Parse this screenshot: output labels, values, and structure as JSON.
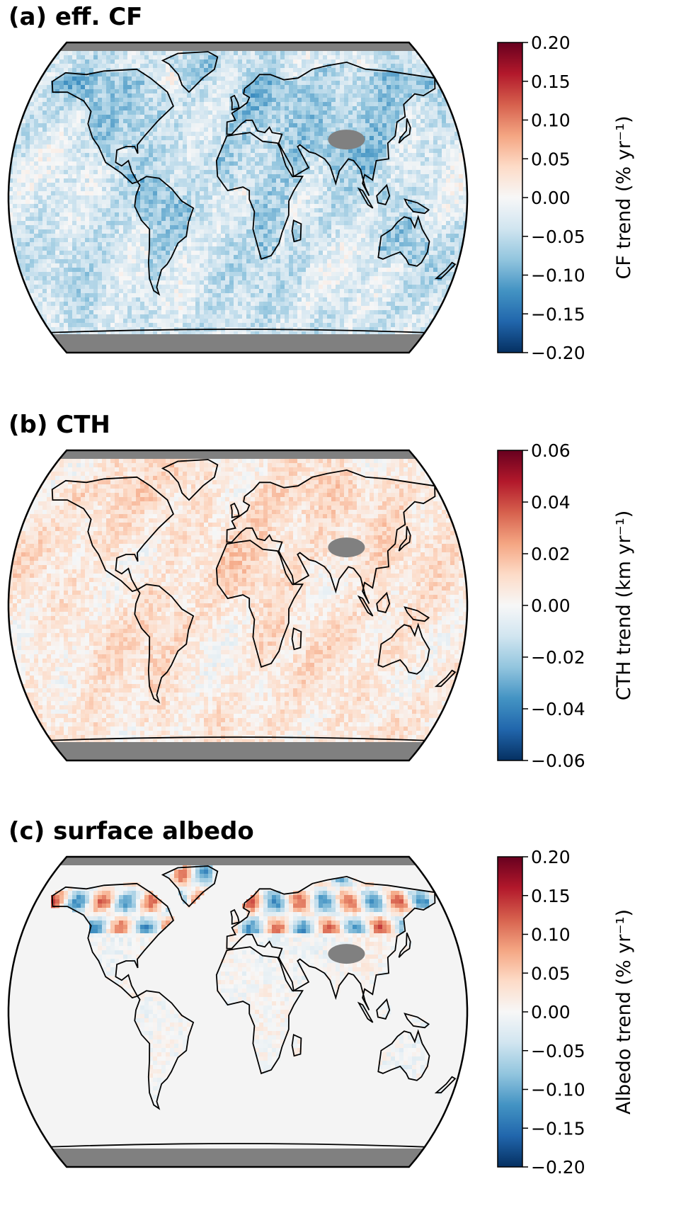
{
  "panels": [
    {
      "id": "cf",
      "title": "(a) eff. CF",
      "colorbar": {
        "label": "CF trend (% yr⁻¹)",
        "ticks": [
          "0.20",
          "0.15",
          "0.10",
          "0.05",
          "0.00",
          "−0.05",
          "−0.10",
          "−0.15",
          "−0.20"
        ],
        "range": [
          -0.2,
          0.2
        ]
      },
      "field": {
        "base": -0.035,
        "land": -0.07,
        "noise": 0.05
      }
    },
    {
      "id": "cth",
      "title": "(b) CTH",
      "colorbar": {
        "label": "CTH trend (km yr⁻¹)",
        "ticks": [
          "0.06",
          "0.04",
          "0.02",
          "0.00",
          "−0.02",
          "−0.04",
          "−0.06"
        ],
        "range": [
          -0.06,
          0.06
        ]
      },
      "field": {
        "base": 0.006,
        "land": 0.008,
        "noise": 0.012
      }
    },
    {
      "id": "albedo",
      "title": "(c) surface albedo",
      "colorbar": {
        "label": "Albedo trend (% yr⁻¹)",
        "ticks": [
          "0.20",
          "0.15",
          "0.10",
          "0.05",
          "0.00",
          "−0.05",
          "−0.10",
          "−0.15",
          "−0.20"
        ],
        "range": [
          -0.2,
          0.2
        ]
      },
      "field": {
        "base": 0.0,
        "land": 0.012,
        "noise": 0.02
      }
    }
  ],
  "colormap": "RdBu_r",
  "colors": {
    "missing": "#808080",
    "coastline": "#000000",
    "ocean_neutral": "#f4f4f4"
  }
}
